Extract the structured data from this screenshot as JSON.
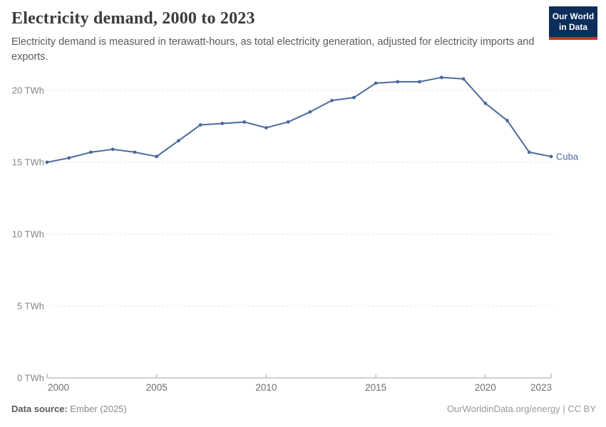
{
  "header": {
    "title": "Electricity demand, 2000 to 2023",
    "subtitle": "Electricity demand is measured in terawatt-hours, as total electricity generation, adjusted for electricity imports and exports.",
    "logo": {
      "line1": "Our World",
      "line2": "in Data",
      "bg_color": "#0d2d5a",
      "accent_color": "#cd3228"
    }
  },
  "chart_data": {
    "type": "line",
    "title": "Electricity demand, 2000 to 2023",
    "xlabel": "",
    "ylabel": "",
    "x": [
      2000,
      2001,
      2002,
      2003,
      2004,
      2005,
      2006,
      2007,
      2008,
      2009,
      2010,
      2011,
      2012,
      2013,
      2014,
      2015,
      2016,
      2017,
      2018,
      2019,
      2020,
      2021,
      2022,
      2023
    ],
    "series": [
      {
        "name": "Cuba",
        "color": "#4C6A9C",
        "values": [
          15.0,
          15.3,
          15.7,
          15.9,
          15.7,
          15.4,
          16.5,
          17.6,
          17.7,
          17.8,
          17.4,
          17.8,
          18.5,
          19.3,
          19.5,
          20.5,
          20.6,
          20.6,
          20.9,
          20.8,
          19.1,
          17.9,
          15.7,
          15.4
        ]
      }
    ],
    "xlim": [
      2000,
      2023
    ],
    "ylim": [
      0,
      21.6
    ],
    "x_ticks": [
      2000,
      2005,
      2010,
      2015,
      2020,
      2023
    ],
    "y_ticks": [
      0,
      5,
      10,
      15,
      20
    ],
    "y_tick_suffix": " TWh",
    "grid": "horizontal-dashed",
    "legend_position": "end-of-line",
    "grid_color": "#dcdcdc",
    "axis_color": "#a1a1a1",
    "y_label_color": "#858585",
    "x_label_color": "#6e6e6e"
  },
  "footer": {
    "source_label": "Data source:",
    "source_value": "Ember (2025)",
    "right": "OurWorldinData.org/energy | CC BY"
  }
}
